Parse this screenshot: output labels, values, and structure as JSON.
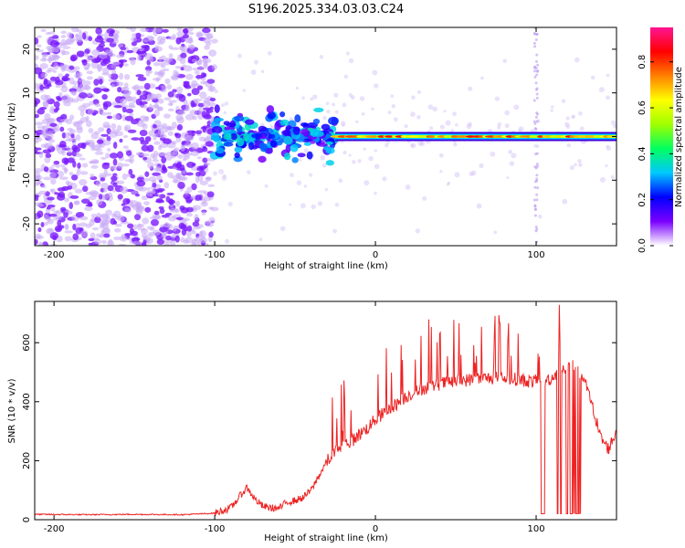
{
  "title": "S196.2025.334.03.03.C24",
  "chart_data": [
    {
      "type": "heatmap",
      "name": "spectrogram",
      "xlabel": "Height of straight line (km)",
      "ylabel": "Frequency (Hz)",
      "xlim": [
        -212,
        150
      ],
      "ylim": [
        -25,
        25
      ],
      "xticks": [
        -200,
        -100,
        0,
        100
      ],
      "yticks": [
        -20,
        -10,
        0,
        10,
        20
      ],
      "xtick_labels": [
        "-200",
        "-100",
        "0",
        "100"
      ],
      "ytick_labels": [
        "-20",
        "-10",
        "0",
        "10",
        "20"
      ],
      "colorbar": {
        "label": "Normalized spectral amplitude",
        "range": [
          0,
          0.95
        ],
        "ticks": [
          0.0,
          0.2,
          0.4,
          0.6,
          0.8
        ],
        "tick_labels": [
          "0.0",
          "0.2",
          "0.4",
          "0.6",
          "0.8"
        ],
        "colormap": [
          "#ffffff",
          "#7a00ff",
          "#0000ff",
          "#00c8ff",
          "#00ff60",
          "#a0ff00",
          "#ffff00",
          "#ff8000",
          "#ff0000",
          "#ff1493"
        ]
      },
      "regions": [
        {
          "name": "noise",
          "x_range": [
            -212,
            -100
          ],
          "amplitude": 0.05
        },
        {
          "name": "onset",
          "x_range": [
            -100,
            -25
          ],
          "amplitude": 0.2
        },
        {
          "name": "signal_line",
          "x_range": [
            -25,
            150
          ],
          "frequency_hz": 0,
          "amplitude": 0.85
        }
      ]
    },
    {
      "type": "line",
      "name": "snr",
      "xlabel": "Height of straight line (km)",
      "ylabel": "SNR (10 * v/v)",
      "xlim": [
        -212,
        150
      ],
      "ylim": [
        0,
        740
      ],
      "xticks": [
        -200,
        -100,
        0,
        100
      ],
      "yticks": [
        0,
        200,
        400,
        600
      ],
      "xtick_labels": [
        "-200",
        "-100",
        "0",
        "100"
      ],
      "ytick_labels": [
        "0",
        "200",
        "400",
        "600"
      ],
      "color": "#ee2222",
      "series": [
        {
          "name": "SNR",
          "x": [
            -212,
            -180,
            -150,
            -120,
            -100,
            -90,
            -85,
            -80,
            -75,
            -70,
            -65,
            -60,
            -55,
            -50,
            -45,
            -40,
            -35,
            -30,
            -25,
            -20,
            -15,
            -10,
            -5,
            0,
            10,
            20,
            30,
            40,
            50,
            60,
            70,
            80,
            90,
            95,
            100,
            102,
            103,
            105,
            110,
            115,
            120,
            125,
            130,
            135,
            140,
            145,
            150
          ],
          "y": [
            18,
            17,
            18,
            17,
            22,
            40,
            75,
            110,
            70,
            45,
            40,
            38,
            60,
            65,
            75,
            100,
            150,
            200,
            230,
            255,
            265,
            290,
            310,
            340,
            380,
            420,
            445,
            460,
            470,
            475,
            480,
            480,
            475,
            470,
            470,
            465,
            460,
            470,
            480,
            510,
            520,
            520,
            470,
            390,
            280,
            240,
            300
          ]
        }
      ],
      "dropouts": [
        {
          "x_range": [
            102,
            106
          ],
          "y": 20
        },
        {
          "x_range": [
            113,
            128
          ],
          "y": 20
        }
      ],
      "spikes": {
        "x_range": [
          -30,
          135
        ],
        "max": 740
      }
    }
  ]
}
